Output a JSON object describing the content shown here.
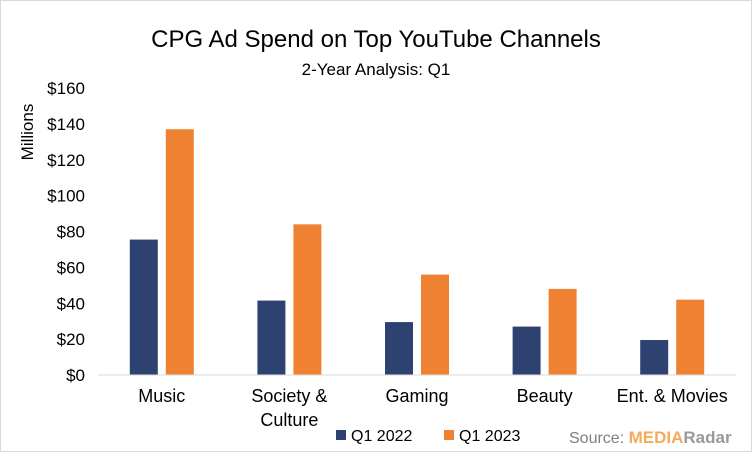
{
  "chart_data": {
    "type": "bar",
    "title": "CPG Ad Spend on Top YouTube Channels",
    "subtitle": "2-Year Analysis: Q1",
    "ylabel": "Millions",
    "xlabel": "",
    "ylim": [
      0,
      160
    ],
    "yticks": [
      0,
      20,
      40,
      60,
      80,
      100,
      120,
      140,
      160
    ],
    "ytick_labels": [
      "$0",
      "$20",
      "$40",
      "$60",
      "$80",
      "$100",
      "$120",
      "$140",
      "$160"
    ],
    "categories": [
      [
        "Music"
      ],
      [
        "Society &",
        "Culture"
      ],
      [
        "Gaming"
      ],
      [
        "Beauty"
      ],
      [
        "Ent. & Movies"
      ]
    ],
    "series": [
      {
        "name": "Q1 2022",
        "color": "#2e4272",
        "values": [
          75.5,
          41.5,
          29.5,
          27,
          19.5
        ]
      },
      {
        "name": "Q1 2023",
        "color": "#ee8232",
        "values": [
          137,
          84,
          56,
          48,
          42
        ]
      }
    ],
    "legend_position": "bottom-center",
    "grid": false
  },
  "source": {
    "prefix": "Source: ",
    "brand_part1": "MEDIA",
    "brand_part2": "Radar"
  }
}
